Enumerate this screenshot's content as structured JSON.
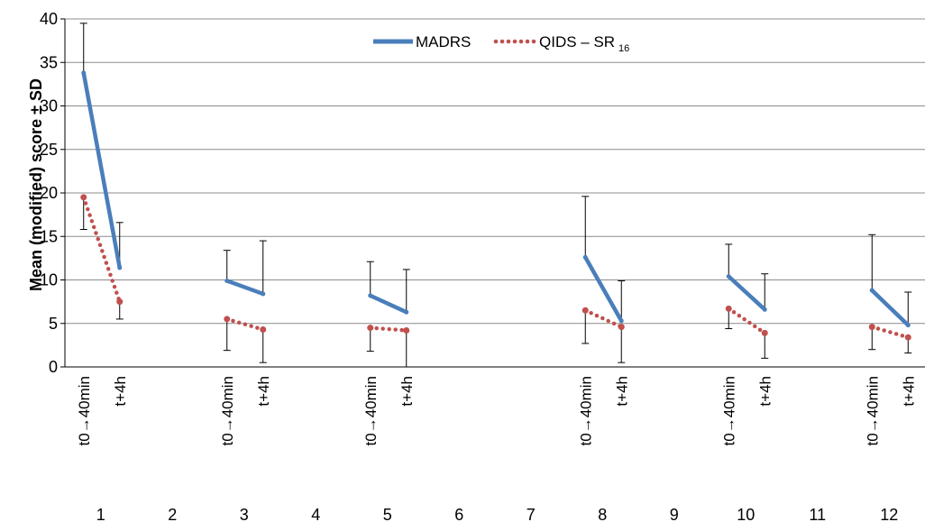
{
  "chart_data": {
    "type": "line",
    "ylabel": "Mean (modified) score ± SD",
    "ylim": [
      0,
      40
    ],
    "yticks": [
      0,
      5,
      10,
      15,
      20,
      25,
      30,
      35,
      40
    ],
    "categories": [
      "1",
      "2",
      "3",
      "4",
      "5",
      "6",
      "7",
      "8",
      "9",
      "10",
      "11",
      "12"
    ],
    "timepoint_labels": [
      "t0→40min",
      "t+4h"
    ],
    "grid": true,
    "legend_position": "top-center",
    "colors": {
      "madrs": "#4A7EBB",
      "qids": "#C0504D",
      "error_bar": "#000000",
      "grid": "#8C8C8C"
    },
    "series": [
      {
        "name": "MADRS",
        "style": "solid",
        "segments": [
          {
            "category": "1",
            "values": [
              33.8,
              11.4
            ],
            "sd_plus": [
              5.7,
              5.2
            ]
          },
          {
            "category": "3",
            "values": [
              9.9,
              8.4
            ],
            "sd_plus": [
              3.5,
              6.1
            ]
          },
          {
            "category": "5",
            "values": [
              8.2,
              6.3
            ],
            "sd_plus": [
              3.9,
              4.9
            ]
          },
          {
            "category": "8",
            "values": [
              12.6,
              5.3
            ],
            "sd_plus": [
              7.0,
              4.6
            ]
          },
          {
            "category": "10",
            "values": [
              10.4,
              6.6
            ],
            "sd_plus": [
              3.7,
              4.1
            ]
          },
          {
            "category": "12",
            "values": [
              8.8,
              4.8
            ],
            "sd_plus": [
              6.4,
              3.8
            ]
          }
        ]
      },
      {
        "name_main": "QIDS – SR",
        "name_sub": "16",
        "style": "dotted",
        "segments": [
          {
            "category": "1",
            "values": [
              19.5,
              7.5
            ],
            "sd_minus": [
              3.7,
              2.0
            ]
          },
          {
            "category": "3",
            "values": [
              5.5,
              4.3
            ],
            "sd_minus": [
              3.6,
              3.8
            ]
          },
          {
            "category": "5",
            "values": [
              4.5,
              4.2
            ],
            "sd_minus": [
              2.7,
              4.2
            ]
          },
          {
            "category": "8",
            "values": [
              6.5,
              4.6
            ],
            "sd_minus": [
              3.8,
              4.1
            ]
          },
          {
            "category": "10",
            "values": [
              6.7,
              3.9
            ],
            "sd_minus": [
              2.3,
              2.9
            ]
          },
          {
            "category": "12",
            "values": [
              4.6,
              3.4
            ],
            "sd_minus": [
              2.6,
              1.8
            ]
          }
        ]
      }
    ]
  }
}
